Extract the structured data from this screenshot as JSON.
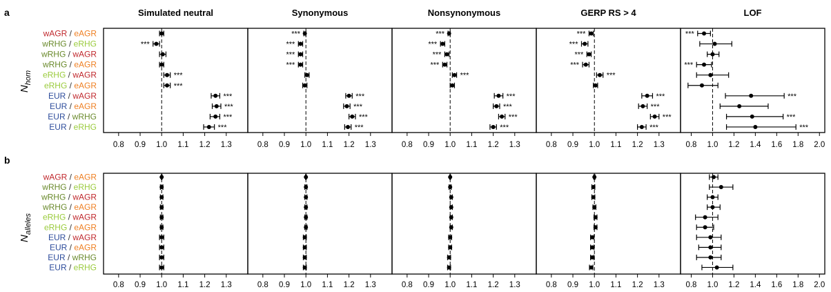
{
  "colors": {
    "wAGR": "#c0282d",
    "eAGR": "#ef7f22",
    "wRHG": "#6a8a2c",
    "eRHG": "#9acb3c",
    "EUR": "#2d4c9b",
    "sep": "#333333"
  },
  "figure": {
    "panel_a": "a",
    "panel_b": "b",
    "ylabel_a_main": "N",
    "ylabel_a_sub": "hom",
    "ylabel_b_main": "N",
    "ylabel_b_sub": "alleles",
    "sep": "/",
    "stars": "***"
  },
  "chart_data": {
    "type": "scatter",
    "subtype": "forest plot with confidence intervals",
    "reference_line": 1.0,
    "columns": [
      {
        "title": "Simulated neutral",
        "xlim": [
          0.73,
          1.4
        ],
        "ticks": [
          "0.8",
          "0.9",
          "1.0",
          "1.1",
          "1.2",
          "1.3"
        ]
      },
      {
        "title": "Synonymous",
        "xlim": [
          0.73,
          1.4
        ],
        "ticks": [
          "0.8",
          "0.9",
          "1.0",
          "1.1",
          "1.2",
          "1.3"
        ]
      },
      {
        "title": "Nonsynonymous",
        "xlim": [
          0.73,
          1.4
        ],
        "ticks": [
          "0.8",
          "0.9",
          "1.0",
          "1.1",
          "1.2",
          "1.3"
        ]
      },
      {
        "title": "GERP RS > 4",
        "xlim": [
          0.73,
          1.4
        ],
        "ticks": [
          "0.8",
          "0.9",
          "1.0",
          "1.1",
          "1.2",
          "1.3"
        ]
      },
      {
        "title": "LOF",
        "xlim": [
          0.7,
          2.05
        ],
        "ticks": [
          "0.8",
          "1.0",
          "1.2",
          "1.4",
          "1.6",
          "1.8",
          "2.0"
        ]
      }
    ],
    "rows": [
      {
        "a": "wAGR",
        "b": "eAGR"
      },
      {
        "a": "wRHG",
        "b": "eRHG"
      },
      {
        "a": "wRHG",
        "b": "wAGR"
      },
      {
        "a": "wRHG",
        "b": "eAGR"
      },
      {
        "a": "eRHG",
        "b": "wAGR"
      },
      {
        "a": "eRHG",
        "b": "eAGR"
      },
      {
        "a": "EUR",
        "b": "wAGR"
      },
      {
        "a": "EUR",
        "b": "eAGR"
      },
      {
        "a": "EUR",
        "b": "wRHG"
      },
      {
        "a": "EUR",
        "b": "eRHG"
      }
    ],
    "panels": [
      {
        "id": "a",
        "columns": [
          {
            "values": [
              1.0,
              0.975,
              1.005,
              1.0,
              1.025,
              1.025,
              1.25,
              1.255,
              1.25,
              1.22
            ],
            "lower": [
              0.99,
              0.96,
              0.99,
              0.99,
              1.01,
              1.01,
              1.23,
              1.235,
              1.225,
              1.195
            ],
            "upper": [
              1.01,
              0.99,
              1.02,
              1.01,
              1.04,
              1.04,
              1.27,
              1.275,
              1.27,
              1.245
            ],
            "sig": [
              false,
              true,
              false,
              false,
              true,
              true,
              true,
              true,
              true,
              true
            ]
          },
          {
            "values": [
              0.995,
              0.975,
              0.975,
              0.975,
              1.005,
              0.995,
              1.2,
              1.19,
              1.215,
              1.195
            ],
            "lower": [
              0.99,
              0.965,
              0.965,
              0.965,
              0.995,
              0.985,
              1.185,
              1.175,
              1.2,
              1.18
            ],
            "upper": [
              1.0,
              0.985,
              0.985,
              0.985,
              1.015,
              1.005,
              1.215,
              1.205,
              1.23,
              1.21
            ],
            "sig": [
              true,
              true,
              true,
              true,
              false,
              false,
              true,
              true,
              true,
              true
            ]
          },
          {
            "values": [
              0.995,
              0.965,
              0.985,
              0.975,
              1.02,
              1.01,
              1.225,
              1.215,
              1.24,
              1.2
            ],
            "lower": [
              0.99,
              0.955,
              0.975,
              0.965,
              1.01,
              1.0,
              1.205,
              1.2,
              1.225,
              1.185
            ],
            "upper": [
              1.0,
              0.975,
              0.995,
              0.985,
              1.03,
              1.02,
              1.245,
              1.23,
              1.255,
              1.215
            ],
            "sig": [
              true,
              true,
              true,
              true,
              true,
              false,
              true,
              true,
              true,
              true
            ]
          },
          {
            "values": [
              0.985,
              0.955,
              0.975,
              0.96,
              1.025,
              1.005,
              1.245,
              1.225,
              1.28,
              1.22
            ],
            "lower": [
              0.975,
              0.94,
              0.965,
              0.945,
              1.01,
              0.995,
              1.22,
              1.205,
              1.26,
              1.2
            ],
            "upper": [
              0.995,
              0.97,
              0.985,
              0.975,
              1.04,
              1.015,
              1.27,
              1.245,
              1.3,
              1.24
            ],
            "sig": [
              true,
              true,
              true,
              true,
              true,
              false,
              true,
              true,
              true,
              true
            ]
          },
          {
            "values": [
              0.92,
              1.02,
              1.0,
              0.92,
              0.98,
              0.9,
              1.36,
              1.25,
              1.37,
              1.4
            ],
            "lower": [
              0.86,
              0.88,
              0.95,
              0.85,
              0.85,
              0.77,
              1.12,
              1.07,
              1.13,
              1.13
            ],
            "upper": [
              0.98,
              1.18,
              1.06,
              0.99,
              1.15,
              1.05,
              1.67,
              1.52,
              1.66,
              1.78
            ],
            "sig": [
              true,
              false,
              false,
              true,
              false,
              false,
              true,
              false,
              true,
              true
            ]
          }
        ]
      },
      {
        "id": "b",
        "columns": [
          {
            "values": [
              1.0,
              1.0,
              1.0,
              1.0,
              1.0,
              1.0,
              1.0,
              1.0,
              1.0,
              1.0
            ],
            "lower": [
              0.998,
              0.994,
              0.994,
              0.994,
              0.994,
              0.994,
              0.99,
              0.99,
              0.99,
              0.99
            ],
            "upper": [
              1.002,
              1.006,
              1.006,
              1.006,
              1.006,
              1.006,
              1.01,
              1.01,
              1.01,
              1.01
            ],
            "sig": [
              false,
              false,
              false,
              false,
              false,
              false,
              false,
              false,
              false,
              false
            ]
          },
          {
            "values": [
              1.0,
              1.0,
              1.0,
              1.0,
              1.0,
              1.0,
              0.995,
              0.995,
              0.995,
              0.995
            ],
            "lower": [
              0.998,
              0.995,
              0.995,
              0.995,
              0.995,
              0.995,
              0.988,
              0.988,
              0.988,
              0.988
            ],
            "upper": [
              1.002,
              1.005,
              1.005,
              1.005,
              1.005,
              1.005,
              1.002,
              1.002,
              1.002,
              1.002
            ],
            "sig": [
              false,
              false,
              false,
              false,
              false,
              false,
              false,
              false,
              false,
              false
            ]
          },
          {
            "values": [
              1.0,
              1.0,
              1.005,
              1.005,
              1.005,
              1.005,
              1.0,
              1.0,
              0.995,
              0.995
            ],
            "lower": [
              0.998,
              0.995,
              1.0,
              1.0,
              1.0,
              1.0,
              0.993,
              0.993,
              0.988,
              0.988
            ],
            "upper": [
              1.002,
              1.005,
              1.01,
              1.01,
              1.01,
              1.01,
              1.007,
              1.007,
              1.002,
              1.002
            ],
            "sig": [
              false,
              false,
              false,
              false,
              false,
              false,
              false,
              false,
              false,
              false
            ]
          },
          {
            "values": [
              1.0,
              0.995,
              0.995,
              1.0,
              1.005,
              1.005,
              0.99,
              0.99,
              0.99,
              0.985
            ],
            "lower": [
              0.997,
              0.988,
              0.988,
              0.993,
              0.998,
              0.998,
              0.982,
              0.982,
              0.982,
              0.977
            ],
            "upper": [
              1.003,
              1.002,
              1.002,
              1.007,
              1.012,
              1.012,
              0.998,
              0.998,
              0.998,
              0.993
            ],
            "sig": [
              false,
              false,
              false,
              false,
              false,
              false,
              false,
              false,
              false,
              false
            ]
          },
          {
            "values": [
              1.01,
              1.08,
              1.0,
              1.0,
              0.93,
              0.93,
              0.98,
              0.98,
              0.98,
              1.04
            ],
            "lower": [
              0.97,
              0.97,
              0.95,
              0.95,
              0.84,
              0.85,
              0.85,
              0.87,
              0.85,
              0.9
            ],
            "upper": [
              1.05,
              1.19,
              1.05,
              1.07,
              1.05,
              1.01,
              1.08,
              1.08,
              1.08,
              1.19
            ],
            "sig": [
              false,
              false,
              false,
              false,
              false,
              false,
              false,
              false,
              false,
              false
            ]
          }
        ]
      }
    ]
  }
}
